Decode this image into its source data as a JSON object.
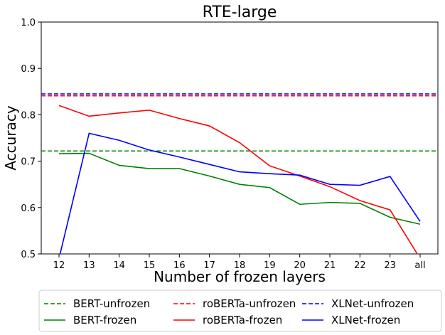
{
  "chart_data": {
    "type": "line",
    "title": "RTE-large",
    "xlabel": "Number of frozen layers",
    "ylabel": "Accuracy",
    "categories": [
      "12",
      "13",
      "14",
      "15",
      "16",
      "17",
      "18",
      "19",
      "20",
      "21",
      "22",
      "23",
      "all"
    ],
    "ylim": [
      0.5,
      1.0
    ],
    "yticks": [
      "0.5",
      "0.6",
      "0.7",
      "0.8",
      "0.9",
      "1.0"
    ],
    "grid": false,
    "legend_position": "bottom",
    "series": [
      {
        "name": "BERT-unfrozen",
        "style": "dashed",
        "color": "#008000",
        "constant": 0.722
      },
      {
        "name": "BERT-frozen",
        "style": "solid",
        "color": "#008000",
        "values": [
          0.716,
          0.717,
          0.691,
          0.684,
          0.684,
          0.668,
          0.65,
          0.643,
          0.607,
          0.611,
          0.609,
          0.579,
          0.564
        ]
      },
      {
        "name": "roBERTa-unfrozen",
        "style": "dashed",
        "color": "#ff0000",
        "constant": 0.841
      },
      {
        "name": "roBERTa-frozen",
        "style": "solid",
        "color": "#ff0000",
        "values": [
          0.82,
          0.797,
          0.804,
          0.81,
          0.792,
          0.776,
          0.74,
          0.69,
          0.668,
          0.645,
          0.615,
          0.595,
          0.49
        ]
      },
      {
        "name": "XLNet-unfrozen",
        "style": "dashed",
        "color": "#0000ff",
        "constant": 0.845
      },
      {
        "name": "XLNet-frozen",
        "style": "solid",
        "color": "#0000ff",
        "values": [
          0.49,
          0.76,
          0.745,
          0.724,
          0.709,
          0.693,
          0.677,
          0.673,
          0.67,
          0.65,
          0.648,
          0.667,
          0.57
        ]
      }
    ]
  }
}
